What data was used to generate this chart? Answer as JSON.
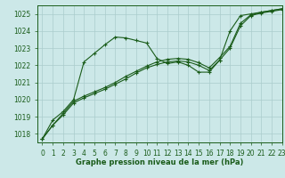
{
  "background_color": "#cce8e8",
  "grid_color": "#aacccc",
  "line_color": "#1a5c1a",
  "ylim": [
    1017.5,
    1025.5
  ],
  "xlim": [
    -0.5,
    23
  ],
  "yticks": [
    1018,
    1019,
    1020,
    1021,
    1022,
    1023,
    1024,
    1025
  ],
  "xticks": [
    0,
    1,
    2,
    3,
    4,
    5,
    6,
    7,
    8,
    9,
    10,
    11,
    12,
    13,
    14,
    15,
    16,
    17,
    18,
    19,
    20,
    21,
    22,
    23
  ],
  "xlabel": "Graphe pression niveau de la mer (hPa)",
  "s1": [
    1017.7,
    1018.8,
    1019.3,
    1020.0,
    1022.2,
    1022.7,
    1023.2,
    1023.65,
    1023.6,
    1023.45,
    1023.3,
    1022.4,
    1022.1,
    1022.2,
    1022.0,
    1021.6,
    1021.6,
    1022.3,
    1024.0,
    1024.9,
    1025.0,
    1025.1,
    1025.2,
    1025.3
  ],
  "s2": [
    1017.7,
    1018.5,
    1019.2,
    1019.9,
    1020.2,
    1020.45,
    1020.7,
    1021.0,
    1021.35,
    1021.65,
    1021.95,
    1022.2,
    1022.35,
    1022.4,
    1022.35,
    1022.15,
    1021.85,
    1022.45,
    1023.1,
    1024.45,
    1024.95,
    1025.1,
    1025.2,
    1025.3
  ],
  "s3": [
    1017.7,
    1018.5,
    1019.1,
    1019.8,
    1020.1,
    1020.35,
    1020.6,
    1020.9,
    1021.2,
    1021.55,
    1021.85,
    1022.05,
    1022.2,
    1022.25,
    1022.2,
    1022.0,
    1021.7,
    1022.3,
    1023.0,
    1024.3,
    1024.9,
    1025.05,
    1025.15,
    1025.25
  ],
  "tick_fontsize": 5.5,
  "xlabel_fontsize": 6,
  "lw": 0.8,
  "marker_size": 3,
  "marker_ew": 0.8
}
